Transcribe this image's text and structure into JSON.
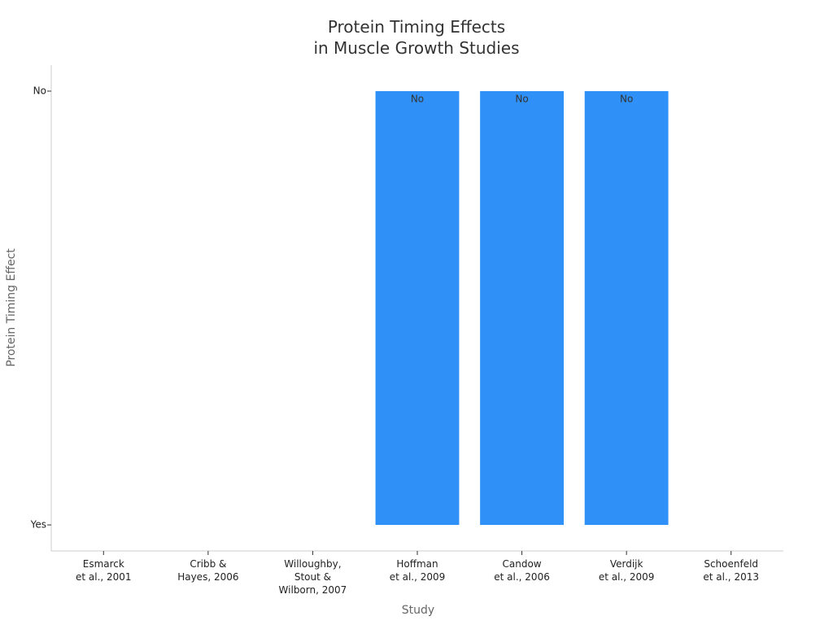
{
  "chart_data": {
    "type": "bar",
    "title": "Protein Timing Effects\nin Muscle Growth Studies",
    "x_label": "Study",
    "y_label": "Protein Timing Effect",
    "categories": [
      "Esmarck\net al., 2001",
      "Cribb &\nHayes, 2006",
      "Willoughby,\nStout &\nWilborn, 2007",
      "Hoffman\net al., 2009",
      "Candow\net al., 2006",
      "Verdijk\net al., 2009",
      "Schoenfeld\net al., 2013"
    ],
    "values": [
      0,
      0,
      0,
      1,
      1,
      1,
      0
    ],
    "value_labels": [
      null,
      null,
      null,
      "No",
      "No",
      "No",
      null
    ],
    "color": "#2f91f7",
    "ylim": [
      -0.06,
      1.06
    ],
    "yticks": [
      {
        "value": 0,
        "label": "Yes"
      },
      {
        "value": 1,
        "label": "No"
      }
    ]
  }
}
